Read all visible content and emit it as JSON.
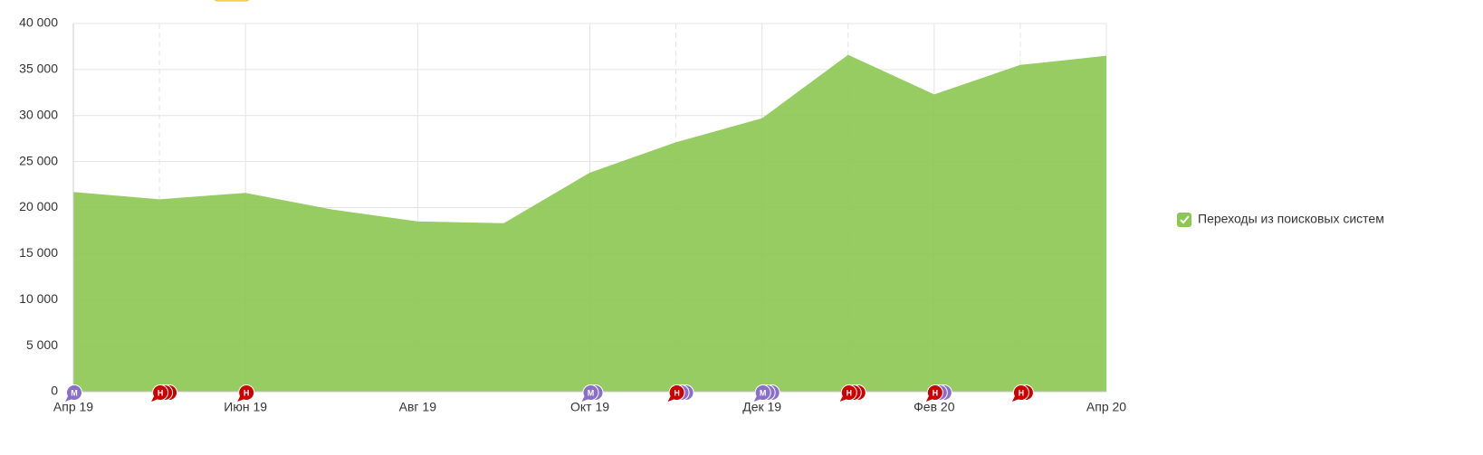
{
  "chart_data": {
    "type": "area",
    "categories": [
      "Апр 19",
      null,
      "Июн 19",
      null,
      "Авг 19",
      null,
      "Окт 19",
      null,
      "Дек 19",
      null,
      "Фев 20",
      null,
      "Апр 20"
    ],
    "series": [
      {
        "name": "Переходы из поисковых систем",
        "color": "#8cc751",
        "values": [
          21700,
          20900,
          21600,
          19800,
          18500,
          18300,
          23800,
          27100,
          29700,
          36600,
          32300,
          35500,
          36500
        ]
      }
    ],
    "ylim": [
      0,
      40000
    ],
    "yticks": [
      0,
      {
        "value": 5000,
        "label": "5 000"
      },
      {
        "value": 10000,
        "label": "10 000"
      },
      {
        "value": 15000,
        "label": "15 000"
      },
      {
        "value": 20000,
        "label": "20 000"
      },
      {
        "value": 25000,
        "label": "25 000"
      },
      {
        "value": 30000,
        "label": "30 000"
      },
      {
        "value": 35000,
        "label": "35 000"
      },
      {
        "value": 40000,
        "label": "40 000"
      }
    ],
    "grid": true,
    "legend": "right",
    "annotations": [
      "М",
      "Н",
      "Н",
      "М",
      "Н",
      "М",
      "Н",
      "Н",
      "Н"
    ]
  }
}
